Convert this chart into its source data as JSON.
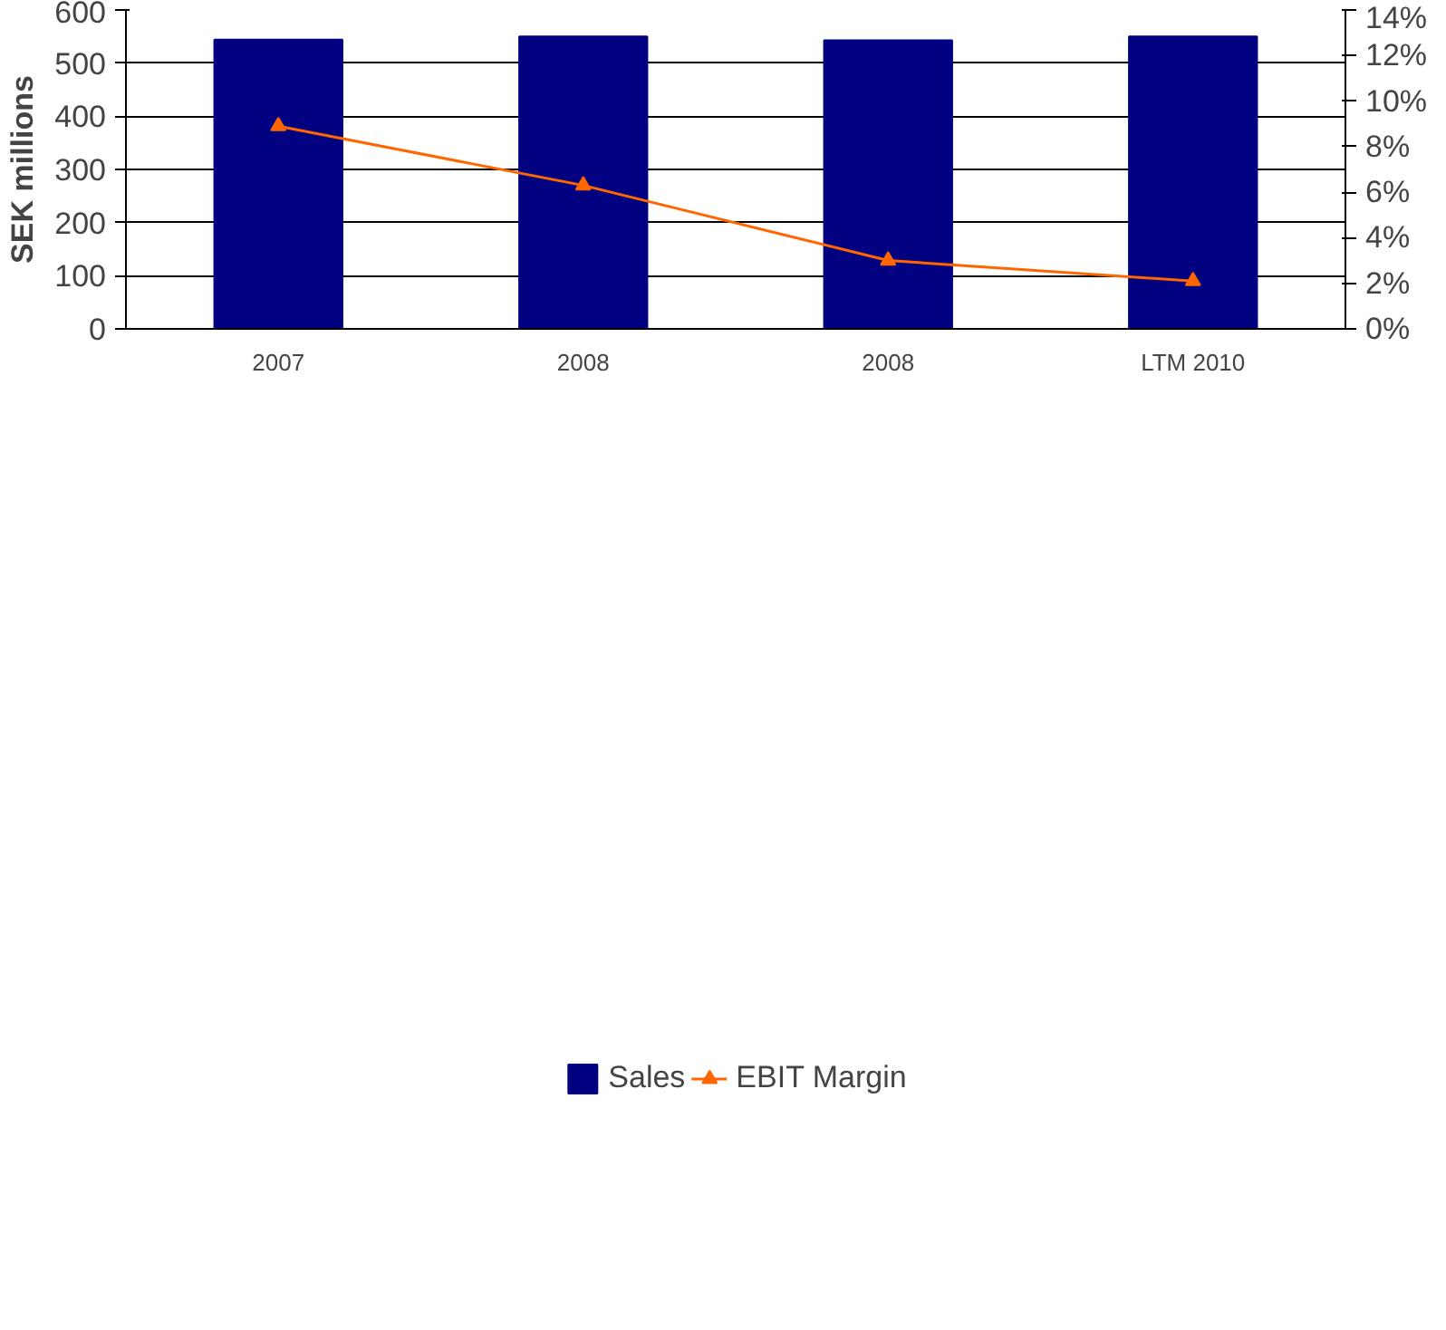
{
  "chart_data": {
    "type": "bar",
    "ylabel": "SEK millions",
    "categories": [
      "2007",
      "2008",
      "2008",
      "LTM 2010"
    ],
    "series": [
      {
        "name": "Sales",
        "color": "#000080",
        "values": [
          544,
          550,
          543,
          550
        ]
      },
      {
        "name": "EBIT Margin",
        "type": "line",
        "axis": "y2",
        "color": "#ff6600",
        "marker": "triangle",
        "values": [
          8.9,
          6.3,
          3.0,
          2.1
        ]
      }
    ],
    "ylim": [
      0,
      600
    ],
    "yticks": [
      0,
      100,
      200,
      300,
      400,
      500,
      600
    ],
    "y2lim": [
      0,
      14
    ],
    "y2ticks": [
      {
        "value": 0,
        "label": "0%"
      },
      {
        "value": 2,
        "label": "2%"
      },
      {
        "value": 4,
        "label": "4%"
      },
      {
        "value": 6,
        "label": "6%"
      },
      {
        "value": 8,
        "label": "8%"
      },
      {
        "value": 10,
        "label": "10%"
      },
      {
        "value": 12,
        "label": "12%"
      },
      {
        "value": 14,
        "label": "14%"
      }
    ],
    "grid": "y",
    "legend": "bottom"
  }
}
